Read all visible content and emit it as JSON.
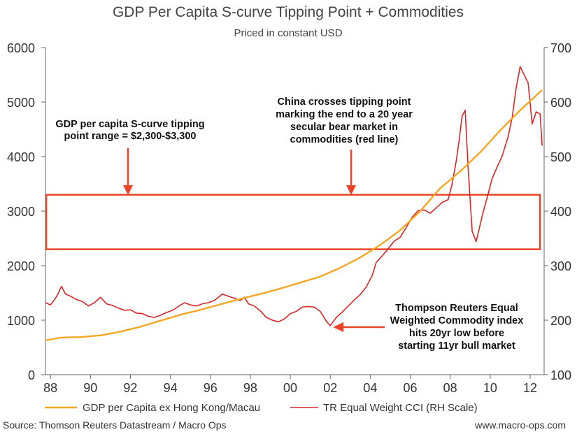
{
  "chart_data": {
    "type": "line",
    "title": "GDP Per Capita S-curve Tipping Point + Commodities",
    "subtitle": "Priced in constant USD",
    "x_range": [
      1987.75,
      2012.7
    ],
    "x_ticks": [
      {
        "value": 1988,
        "label": "88"
      },
      {
        "value": 1990,
        "label": "90"
      },
      {
        "value": 1992,
        "label": "92"
      },
      {
        "value": 1994,
        "label": "94"
      },
      {
        "value": 1996,
        "label": "96"
      },
      {
        "value": 1998,
        "label": "98"
      },
      {
        "value": 2000,
        "label": "00"
      },
      {
        "value": 2002,
        "label": "02"
      },
      {
        "value": 2004,
        "label": "04"
      },
      {
        "value": 2006,
        "label": "06"
      },
      {
        "value": 2008,
        "label": "08"
      },
      {
        "value": 2010,
        "label": "10"
      },
      {
        "value": 2012,
        "label": "12"
      }
    ],
    "y_left": {
      "min": 0,
      "max": 6000,
      "ticks": [
        0,
        1000,
        2000,
        3000,
        4000,
        5000,
        6000
      ]
    },
    "y_right": {
      "min": 100,
      "max": 700,
      "ticks": [
        100,
        200,
        300,
        400,
        500,
        600,
        700
      ]
    },
    "tipping_band": {
      "low": 2300,
      "high": 3300,
      "axis": "left",
      "color": "#e8442a"
    },
    "series": [
      {
        "name": "GDP per Capita ex Hong Kong/Macau",
        "axis": "left",
        "color": "#f5a623",
        "x": [
          1987.75,
          1988.5,
          1989.5,
          1990.5,
          1991.5,
          1992.5,
          1993.5,
          1994.5,
          1995.5,
          1996.5,
          1997.5,
          1998.5,
          1999.5,
          2000.5,
          2001.5,
          2002.5,
          2003.5,
          2004.5,
          2005.5,
          2006.5,
          2007.5,
          2008.5,
          2009.5,
          2010.5,
          2011.5,
          2012.6
        ],
        "values": [
          630,
          680,
          690,
          720,
          790,
          880,
          990,
          1100,
          1190,
          1290,
          1390,
          1480,
          1580,
          1690,
          1800,
          1960,
          2150,
          2380,
          2650,
          3000,
          3420,
          3730,
          4080,
          4480,
          4850,
          5220
        ]
      },
      {
        "name": "TR Equal Weight CCI (RH Scale)",
        "axis": "right",
        "color": "#d62728",
        "x": [
          1987.75,
          1988.0,
          1988.25,
          1988.4,
          1988.55,
          1988.75,
          1989.0,
          1989.3,
          1989.6,
          1989.9,
          1990.2,
          1990.5,
          1990.8,
          1991.1,
          1991.4,
          1991.7,
          1992.0,
          1992.3,
          1992.6,
          1992.9,
          1993.2,
          1993.5,
          1993.8,
          1994.1,
          1994.4,
          1994.7,
          1995.0,
          1995.3,
          1995.6,
          1995.9,
          1996.2,
          1996.4,
          1996.6,
          1996.9,
          1997.2,
          1997.5,
          1997.7,
          1997.9,
          1998.2,
          1998.5,
          1998.8,
          1999.1,
          1999.4,
          1999.7,
          2000.0,
          2000.3,
          2000.6,
          2000.9,
          2001.2,
          2001.5,
          2001.8,
          2002.0,
          2002.3,
          2002.6,
          2002.9,
          2003.2,
          2003.5,
          2003.8,
          2004.1,
          2004.3,
          2004.6,
          2004.9,
          2005.2,
          2005.5,
          2005.8,
          2006.1,
          2006.4,
          2006.7,
          2007.0,
          2007.3,
          2007.6,
          2007.9,
          2008.1,
          2008.3,
          2008.45,
          2008.6,
          2008.75,
          2008.9,
          2009.1,
          2009.3,
          2009.6,
          2009.9,
          2010.1,
          2010.35,
          2010.6,
          2010.9,
          2011.1,
          2011.3,
          2011.5,
          2011.7,
          2011.9,
          2012.1,
          2012.3,
          2012.5,
          2012.6
        ],
        "values": [
          232,
          228,
          240,
          250,
          262,
          248,
          244,
          238,
          234,
          226,
          232,
          242,
          230,
          227,
          222,
          218,
          219,
          213,
          212,
          207,
          205,
          209,
          214,
          218,
          225,
          232,
          228,
          226,
          230,
          232,
          236,
          242,
          248,
          244,
          240,
          236,
          242,
          230,
          226,
          217,
          205,
          200,
          197,
          202,
          212,
          216,
          224,
          225,
          224,
          216,
          198,
          190,
          205,
          215,
          226,
          237,
          247,
          261,
          282,
          306,
          318,
          331,
          345,
          352,
          370,
          389,
          401,
          402,
          396,
          406,
          416,
          421,
          450,
          492,
          530,
          575,
          585,
          477,
          363,
          344,
          391,
          432,
          460,
          481,
          501,
          537,
          572,
          626,
          665,
          650,
          635,
          560,
          582,
          578,
          520
        ]
      }
    ],
    "annotations": {
      "tipping_range": [
        "GDP per capita S-curve tipping",
        "point range = $2,300-$3,300"
      ],
      "china": [
        "China crosses tipping point",
        "marking the end to a 20 year",
        "secular bear market in",
        "commodities (red line)"
      ],
      "thompson": [
        "Thompson Reuters Equal",
        "Weighted Commodity index",
        "hits 20yr low before",
        "starting 11yr bull market"
      ]
    },
    "legend": [
      {
        "label": "GDP per Capita ex Hong Kong/Macau",
        "color": "#f5a623"
      },
      {
        "label": "TR Equal Weight CCI (RH Scale)",
        "color": "#d62728"
      }
    ],
    "source": "Source: Thomson Reuters Datastream / Macro Ops",
    "website": "www.macro-ops.com"
  }
}
